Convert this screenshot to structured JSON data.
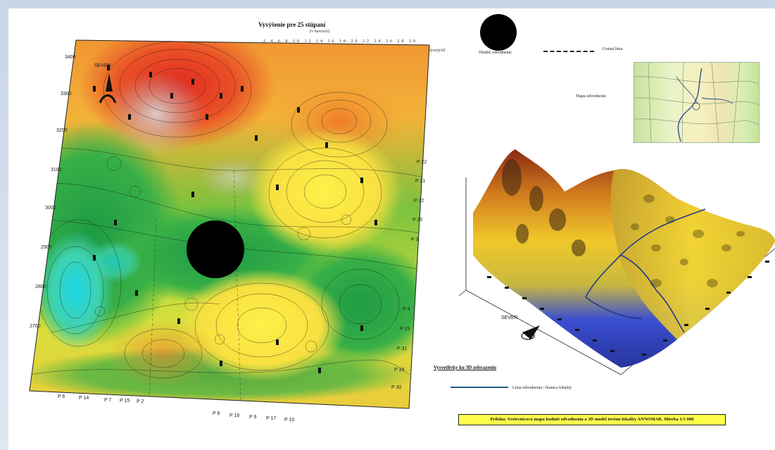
{
  "legend": {
    "title": "Vyvýšenie pre 25 stúpaní",
    "subtitle": "(v metroch)",
    "ticks": "2 4 6 8 10 12 14 16 18 20 22 24 26 28 30",
    "colors": [
      "#5a0a48",
      "#7c1052",
      "#a01850",
      "#c21e44",
      "#dd2a2e",
      "#ea4a22",
      "#f06a22",
      "#f58a26",
      "#f7a82c",
      "#f8c230",
      "#f7d836",
      "#eee83a",
      "#c9e236",
      "#96d436",
      "#5ec23c",
      "#2fae4a",
      "#1a9a78",
      "#1a6cc0"
    ]
  },
  "symbols": {
    "point_label": "Vyvery/ril",
    "disc_label": "Hladné odvodnenie",
    "dash_label": "Cestná línia",
    "inset_label": "Mapa odvodnenie"
  },
  "map": {
    "north_label": "SEVER",
    "left_labels": [
      "3400",
      "3300",
      "3200",
      "3100",
      "3000",
      "2900",
      "2800",
      "2700"
    ],
    "right_labels": [
      "P 22",
      "P 21",
      "P 32",
      "P 20",
      "P 3",
      "P 4",
      "P 19",
      "P 31",
      "P 18",
      "P 30"
    ],
    "bottom_labels": [
      "P 6",
      "P 14",
      "P 7",
      "P 15",
      "P 2",
      "P 8",
      "P 16",
      "P 9",
      "P 17",
      "P 10"
    ]
  },
  "surface": {
    "north_label": "SEVER"
  },
  "explanation": {
    "title": "Vysvetlivky ku 3D zobrazeniu",
    "line_label": "Línia odvodnenia / hranica lokality"
  },
  "caption": "Príloha: Vrstevnicová mapa hodnôt odvodnenia a 3D model terénu lokality ANNOMAR. Mierka 1:5 000"
}
